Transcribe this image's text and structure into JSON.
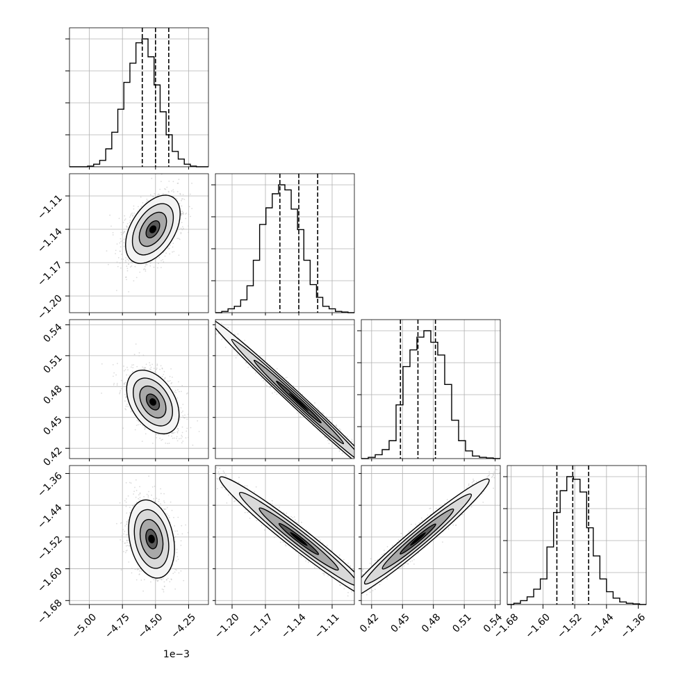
{
  "chart_data": {
    "type": "corner",
    "parameters": [
      {
        "range": [
          -5.15,
          -4.1
        ],
        "ticks": [
          -5.0,
          -4.75,
          -4.5,
          -4.25
        ],
        "tick_labels": [
          "−5.00",
          "−4.75",
          "−4.50",
          "−4.25"
        ],
        "offset_text": "1e−3",
        "quantiles": [
          -4.6,
          -4.5,
          -4.4
        ],
        "hist": [
          0,
          0,
          0,
          0.005,
          0.02,
          0.05,
          0.14,
          0.27,
          0.45,
          0.66,
          0.81,
          0.97,
          1.0,
          0.86,
          0.64,
          0.43,
          0.25,
          0.12,
          0.06,
          0.02,
          0.005,
          0,
          0
        ]
      },
      {
        "range": [
          -1.215,
          -1.09
        ],
        "ticks": [
          -1.2,
          -1.17,
          -1.14,
          -1.11
        ],
        "tick_labels": [
          "−1.20",
          "−1.17",
          "−1.14",
          "−1.11"
        ],
        "offset_text": "",
        "quantiles": [
          -1.157,
          -1.14,
          -1.123
        ],
        "hist": [
          0,
          0.01,
          0.03,
          0.05,
          0.1,
          0.21,
          0.41,
          0.69,
          0.82,
          0.93,
          1.0,
          0.96,
          0.81,
          0.65,
          0.41,
          0.22,
          0.12,
          0.05,
          0.03,
          0.01,
          0.005,
          0
        ]
      },
      {
        "range": [
          0.41,
          0.545
        ],
        "ticks": [
          0.42,
          0.45,
          0.48,
          0.51,
          0.54
        ],
        "tick_labels": [
          "0.42",
          "0.45",
          "0.48",
          "0.51",
          "0.54"
        ],
        "offset_text": "",
        "quantiles": [
          0.448,
          0.465,
          0.482
        ],
        "hist": [
          0,
          0.01,
          0.03,
          0.07,
          0.14,
          0.42,
          0.72,
          0.85,
          0.95,
          1.0,
          0.91,
          0.81,
          0.58,
          0.3,
          0.14,
          0.06,
          0.02,
          0.01,
          0.005,
          0
        ]
      },
      {
        "range": [
          -1.69,
          -1.34
        ],
        "ticks": [
          -1.68,
          -1.6,
          -1.52,
          -1.44,
          -1.36
        ],
        "tick_labels": [
          "−1.68",
          "−1.60",
          "−1.52",
          "−1.44",
          "−1.36"
        ],
        "offset_text": "",
        "quantiles": [
          -1.565,
          -1.525,
          -1.485
        ],
        "hist": [
          0,
          0.01,
          0.03,
          0.06,
          0.12,
          0.2,
          0.45,
          0.72,
          0.89,
          1.0,
          0.98,
          0.88,
          0.6,
          0.38,
          0.2,
          0.1,
          0.05,
          0.02,
          0.01,
          0.005,
          0
        ]
      }
    ],
    "pairs": [
      {
        "row": 1,
        "col": 0,
        "center": [
          -4.52,
          -1.14
        ],
        "sigma": [
          0.11,
          0.017
        ],
        "angle_deg": 58
      },
      {
        "row": 2,
        "col": 0,
        "center": [
          -4.52,
          0.465
        ],
        "sigma": [
          0.11,
          0.017
        ],
        "angle_deg": -58
      },
      {
        "row": 2,
        "col": 1,
        "center": [
          -1.14,
          0.465
        ],
        "sigma": [
          0.055,
          0.0045
        ],
        "angle_deg": -43
      },
      {
        "row": 3,
        "col": 0,
        "center": [
          -4.53,
          -1.525
        ],
        "sigma": [
          0.11,
          0.05
        ],
        "angle_deg": -78
      },
      {
        "row": 3,
        "col": 1,
        "center": [
          -1.14,
          -1.525
        ],
        "sigma": [
          0.045,
          0.018
        ],
        "angle_deg": -38
      },
      {
        "row": 3,
        "col": 2,
        "center": [
          0.465,
          -1.525
        ],
        "sigma": [
          0.045,
          0.017
        ],
        "angle_deg": 40
      }
    ],
    "grid": true,
    "contour_levels": [
      0.5,
      1.0,
      1.5,
      2.0
    ],
    "colors": {
      "line": "#000000",
      "grid": "#b0b0b0",
      "points": "#bdbdbd"
    }
  }
}
